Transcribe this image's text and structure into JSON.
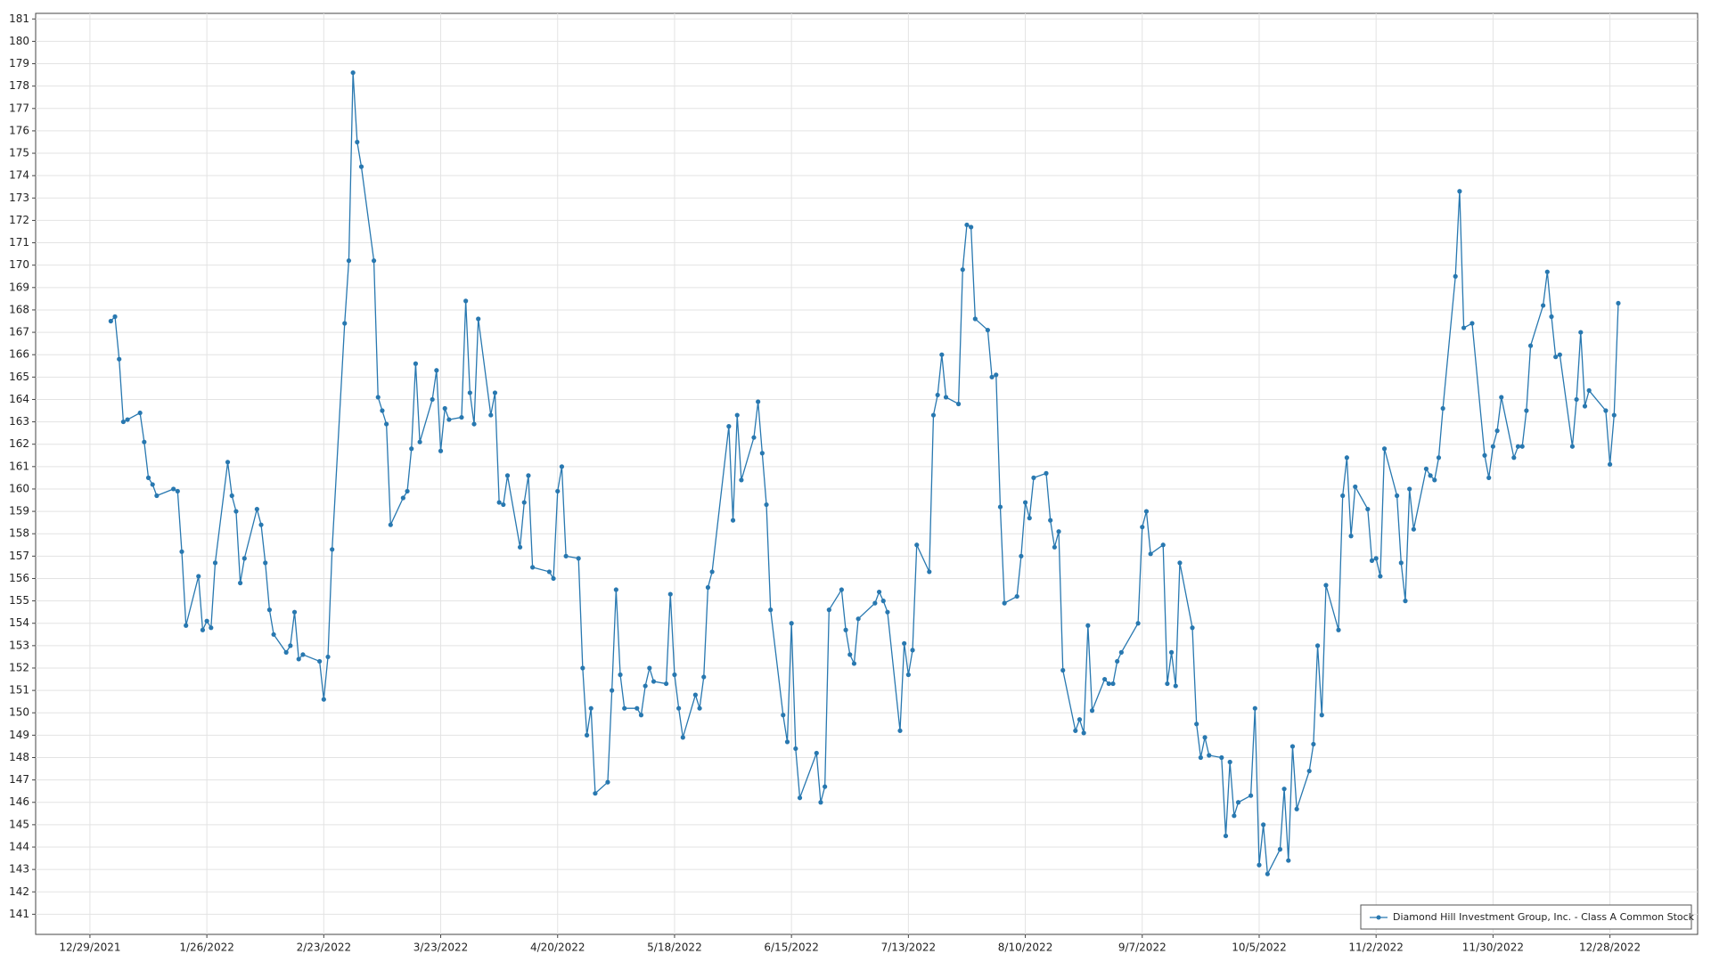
{
  "chart_data": {
    "type": "line",
    "xlim": [
      "12/16/2021",
      "1/18/2023"
    ],
    "ylim": [
      140.1,
      181.25
    ],
    "xticks": [
      "12/29/2021",
      "1/26/2022",
      "2/23/2022",
      "3/23/2022",
      "4/20/2022",
      "5/18/2022",
      "6/15/2022",
      "7/13/2022",
      "8/10/2022",
      "9/7/2022",
      "10/5/2022",
      "11/2/2022",
      "11/30/2022",
      "12/28/2022"
    ],
    "yticks": [
      141,
      142,
      143,
      144,
      145,
      146,
      147,
      148,
      149,
      150,
      151,
      152,
      153,
      154,
      155,
      156,
      157,
      158,
      159,
      160,
      161,
      162,
      163,
      164,
      165,
      166,
      167,
      168,
      169,
      170,
      171,
      172,
      173,
      174,
      175,
      176,
      177,
      178,
      179,
      180,
      181
    ],
    "grid": true,
    "legend": "bottom-right",
    "x": [
      "1/3/2022",
      "1/4/2022",
      "1/5/2022",
      "1/6/2022",
      "1/7/2022",
      "1/10/2022",
      "1/11/2022",
      "1/12/2022",
      "1/13/2022",
      "1/14/2022",
      "1/18/2022",
      "1/19/2022",
      "1/20/2022",
      "1/21/2022",
      "1/24/2022",
      "1/25/2022",
      "1/26/2022",
      "1/27/2022",
      "1/28/2022",
      "1/31/2022",
      "2/1/2022",
      "2/2/2022",
      "2/3/2022",
      "2/4/2022",
      "2/7/2022",
      "2/8/2022",
      "2/9/2022",
      "2/10/2022",
      "2/11/2022",
      "2/14/2022",
      "2/15/2022",
      "2/16/2022",
      "2/17/2022",
      "2/18/2022",
      "2/22/2022",
      "2/23/2022",
      "2/24/2022",
      "2/25/2022",
      "2/28/2022",
      "3/1/2022",
      "3/2/2022",
      "3/3/2022",
      "3/4/2022",
      "3/7/2022",
      "3/8/2022",
      "3/9/2022",
      "3/10/2022",
      "3/11/2022",
      "3/14/2022",
      "3/15/2022",
      "3/16/2022",
      "3/17/2022",
      "3/18/2022",
      "3/21/2022",
      "3/22/2022",
      "3/23/2022",
      "3/24/2022",
      "3/25/2022",
      "3/28/2022",
      "3/29/2022",
      "3/30/2022",
      "3/31/2022",
      "4/1/2022",
      "4/4/2022",
      "4/5/2022",
      "4/6/2022",
      "4/7/2022",
      "4/8/2022",
      "4/11/2022",
      "4/12/2022",
      "4/13/2022",
      "4/14/2022",
      "4/18/2022",
      "4/19/2022",
      "4/20/2022",
      "4/21/2022",
      "4/22/2022",
      "4/25/2022",
      "4/26/2022",
      "4/27/2022",
      "4/28/2022",
      "4/29/2022",
      "5/2/2022",
      "5/3/2022",
      "5/4/2022",
      "5/5/2022",
      "5/6/2022",
      "5/9/2022",
      "5/10/2022",
      "5/11/2022",
      "5/12/2022",
      "5/13/2022",
      "5/16/2022",
      "5/17/2022",
      "5/18/2022",
      "5/19/2022",
      "5/20/2022",
      "5/23/2022",
      "5/24/2022",
      "5/25/2022",
      "5/26/2022",
      "5/27/2022",
      "5/31/2022",
      "6/1/2022",
      "6/2/2022",
      "6/3/2022",
      "6/6/2022",
      "6/7/2022",
      "6/8/2022",
      "6/9/2022",
      "6/10/2022",
      "6/13/2022",
      "6/14/2022",
      "6/15/2022",
      "6/16/2022",
      "6/17/2022",
      "6/21/2022",
      "6/22/2022",
      "6/23/2022",
      "6/24/2022",
      "6/27/2022",
      "6/28/2022",
      "6/29/2022",
      "6/30/2022",
      "7/1/2022",
      "7/5/2022",
      "7/6/2022",
      "7/7/2022",
      "7/8/2022",
      "7/11/2022",
      "7/12/2022",
      "7/13/2022",
      "7/14/2022",
      "7/15/2022",
      "7/18/2022",
      "7/19/2022",
      "7/20/2022",
      "7/21/2022",
      "7/22/2022",
      "7/25/2022",
      "7/26/2022",
      "7/27/2022",
      "7/28/2022",
      "7/29/2022",
      "8/1/2022",
      "8/2/2022",
      "8/3/2022",
      "8/4/2022",
      "8/5/2022",
      "8/8/2022",
      "8/9/2022",
      "8/10/2022",
      "8/11/2022",
      "8/12/2022",
      "8/15/2022",
      "8/16/2022",
      "8/17/2022",
      "8/18/2022",
      "8/19/2022",
      "8/22/2022",
      "8/23/2022",
      "8/24/2022",
      "8/25/2022",
      "8/26/2022",
      "8/29/2022",
      "8/30/2022",
      "8/31/2022",
      "9/1/2022",
      "9/2/2022",
      "9/6/2022",
      "9/7/2022",
      "9/8/2022",
      "9/9/2022",
      "9/12/2022",
      "9/13/2022",
      "9/14/2022",
      "9/15/2022",
      "9/16/2022",
      "9/19/2022",
      "9/20/2022",
      "9/21/2022",
      "9/22/2022",
      "9/23/2022",
      "9/26/2022",
      "9/27/2022",
      "9/28/2022",
      "9/29/2022",
      "9/30/2022",
      "10/3/2022",
      "10/4/2022",
      "10/5/2022",
      "10/6/2022",
      "10/7/2022",
      "10/10/2022",
      "10/11/2022",
      "10/12/2022",
      "10/13/2022",
      "10/14/2022",
      "10/17/2022",
      "10/18/2022",
      "10/19/2022",
      "10/20/2022",
      "10/21/2022",
      "10/24/2022",
      "10/25/2022",
      "10/26/2022",
      "10/27/2022",
      "10/28/2022",
      "10/31/2022",
      "11/1/2022",
      "11/2/2022",
      "11/3/2022",
      "11/4/2022",
      "11/7/2022",
      "11/8/2022",
      "11/9/2022",
      "11/10/2022",
      "11/11/2022",
      "11/14/2022",
      "11/15/2022",
      "11/16/2022",
      "11/17/2022",
      "11/18/2022",
      "11/21/2022",
      "11/22/2022",
      "11/23/2022",
      "11/25/2022",
      "11/28/2022",
      "11/29/2022",
      "11/30/2022",
      "12/1/2022",
      "12/2/2022",
      "12/5/2022",
      "12/6/2022",
      "12/7/2022",
      "12/8/2022",
      "12/9/2022",
      "12/12/2022",
      "12/13/2022",
      "12/14/2022",
      "12/15/2022",
      "12/16/2022",
      "12/19/2022",
      "12/20/2022",
      "12/21/2022",
      "12/22/2022",
      "12/23/2022",
      "12/27/2022",
      "12/28/2022",
      "12/29/2022",
      "12/30/2022"
    ],
    "series": [
      {
        "name": "Diamond Hill Investment Group, Inc. - Class A Common Stock",
        "color": "#2878b0",
        "values": [
          167.5,
          167.7,
          165.8,
          163.0,
          163.1,
          163.4,
          162.1,
          160.5,
          160.2,
          159.7,
          160.0,
          159.9,
          157.2,
          153.9,
          156.1,
          153.7,
          154.1,
          153.8,
          156.7,
          161.2,
          159.7,
          159.0,
          155.8,
          156.9,
          159.1,
          158.4,
          156.7,
          154.6,
          153.5,
          152.7,
          153.0,
          154.5,
          152.4,
          152.6,
          152.3,
          150.6,
          152.5,
          157.3,
          167.4,
          170.2,
          178.6,
          175.5,
          174.4,
          170.2,
          164.1,
          163.5,
          162.9,
          158.4,
          159.6,
          159.9,
          161.8,
          165.6,
          162.1,
          164.0,
          165.3,
          161.7,
          163.6,
          163.1,
          163.2,
          168.4,
          164.3,
          162.9,
          167.6,
          163.3,
          164.3,
          159.4,
          159.3,
          160.6,
          157.4,
          159.4,
          160.6,
          156.5,
          156.3,
          156.0,
          159.9,
          161.0,
          157.0,
          156.9,
          152.0,
          149.0,
          150.2,
          146.4,
          146.9,
          151.0,
          155.5,
          151.7,
          150.2,
          150.2,
          149.9,
          151.2,
          152.0,
          151.4,
          151.3,
          155.3,
          151.7,
          150.2,
          148.9,
          150.8,
          150.2,
          151.6,
          155.6,
          156.3,
          162.8,
          158.6,
          163.3,
          160.4,
          162.3,
          163.9,
          161.6,
          159.3,
          154.6,
          149.9,
          148.7,
          154.0,
          148.4,
          146.2,
          148.2,
          146.0,
          146.7,
          154.6,
          155.5,
          153.7,
          152.6,
          152.2,
          154.2,
          154.9,
          155.4,
          155.0,
          154.5,
          149.2,
          153.1,
          151.7,
          152.8,
          157.5,
          156.3,
          163.3,
          164.2,
          166.0,
          164.1,
          163.8,
          169.8,
          171.8,
          171.7,
          167.6,
          167.1,
          165.0,
          165.1,
          159.2,
          154.9,
          155.2,
          157.0,
          159.4,
          158.7,
          160.5,
          160.7,
          158.6,
          157.4,
          158.1,
          151.9,
          149.2,
          149.7,
          149.1,
          153.9,
          150.1,
          151.5,
          151.3,
          151.3,
          152.3,
          152.7,
          154.0,
          158.3,
          159.0,
          157.1,
          157.5,
          151.3,
          152.7,
          151.2,
          156.7,
          153.8,
          149.5,
          148.0,
          148.9,
          148.1,
          148.0,
          144.5,
          147.8,
          145.4,
          146.0,
          146.3,
          150.2,
          143.2,
          145.0,
          142.8,
          143.9,
          146.6,
          143.4,
          148.5,
          145.7,
          147.4,
          148.6,
          153.0,
          149.9,
          155.7,
          153.7,
          159.7,
          161.4,
          157.9,
          160.1,
          159.1,
          156.8,
          156.9,
          156.1,
          161.8,
          159.7,
          156.7,
          155.0,
          160.0,
          158.2,
          160.9,
          160.6,
          160.4,
          161.4,
          163.6,
          169.5,
          173.3,
          167.2,
          167.4,
          161.5,
          160.5,
          161.9,
          162.6,
          164.1,
          161.4,
          161.9,
          161.9,
          163.5,
          166.4,
          168.2,
          169.7,
          167.7,
          165.9,
          166.0,
          161.9,
          164.0,
          167.0,
          163.7,
          164.4,
          163.5,
          161.1,
          163.3,
          168.3
        ]
      }
    ]
  }
}
